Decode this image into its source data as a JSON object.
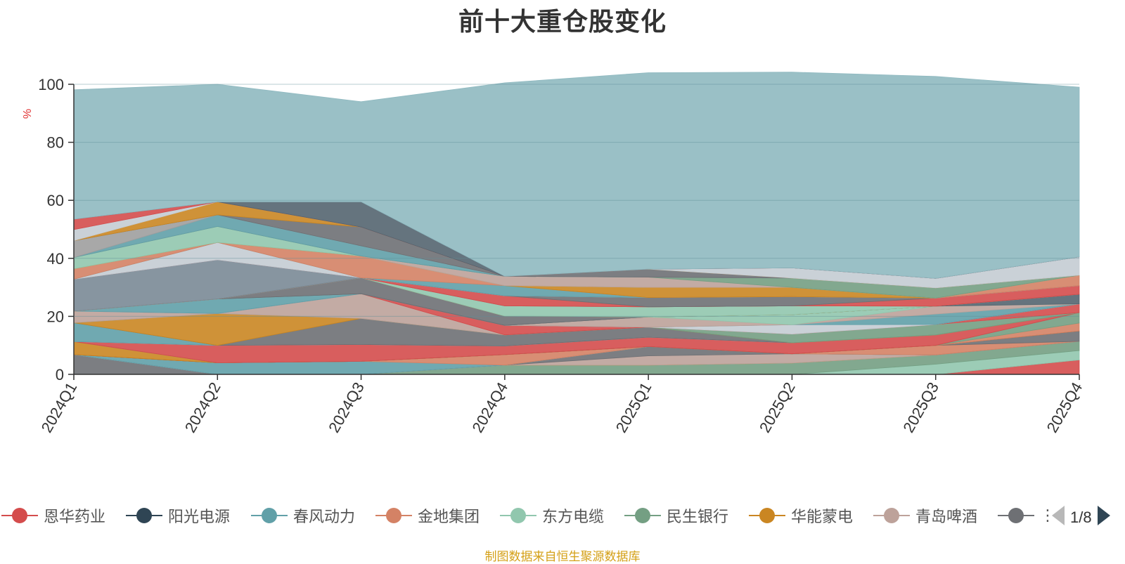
{
  "title": "前十大重仓股变化",
  "source_note": "制图数据来自恒生聚源数据库",
  "legend_pager": {
    "text": "1/8",
    "truncated_item": "⋮"
  },
  "chart_data": {
    "type": "area",
    "stacked": true,
    "categories": [
      "2024Q1",
      "2024Q2",
      "2024Q3",
      "2024Q4",
      "2025Q1",
      "2025Q2",
      "2025Q3",
      "2025Q4"
    ],
    "ylabel": "%",
    "ylim": [
      0,
      100
    ],
    "yticks": [
      0,
      20,
      40,
      60,
      80,
      100
    ],
    "grid": true,
    "legend_position": "bottom",
    "series": [
      {
        "name": "恩华药业",
        "color": "#d44c4c",
        "values": [
          0,
          0,
          0,
          0,
          0,
          0,
          0,
          5
        ]
      },
      {
        "name": "阳光电源",
        "color": "#2f4554",
        "values": [
          0,
          0,
          0,
          0,
          0,
          0,
          0,
          0
        ]
      },
      {
        "name": "春风动力",
        "color": "#61a0a8",
        "values": [
          0,
          0,
          0,
          0,
          0,
          0,
          0,
          0
        ]
      },
      {
        "name": "金地集团",
        "color": "#d48265",
        "values": [
          0,
          0,
          0,
          0,
          0,
          0,
          0,
          0
        ]
      },
      {
        "name": "东方电缆",
        "color": "#91c7ae",
        "values": [
          0,
          0,
          0,
          0,
          0,
          0,
          3.5,
          3.2
        ]
      },
      {
        "name": "民生银行",
        "color": "#749f83",
        "values": [
          0,
          0,
          0,
          3.2,
          3.2,
          3.9,
          3.2,
          3.2
        ]
      },
      {
        "name": "华能蒙电",
        "color": "#ca8622",
        "values": [
          0,
          0,
          0,
          0,
          0,
          0,
          0,
          0
        ]
      },
      {
        "name": "青岛啤酒",
        "color": "#bda29a",
        "values": [
          0,
          0,
          0,
          0,
          3.2,
          3.2,
          0,
          0
        ]
      },
      {
        "color": "#6e7074",
        "values": [
          6.8,
          0,
          0,
          0,
          3.2,
          0,
          0,
          0
        ]
      },
      {
        "color": "#546570",
        "values": [
          0,
          0,
          0,
          0,
          0,
          0,
          0,
          0
        ]
      },
      {
        "color": "#c4ccd3",
        "values": [
          0,
          0,
          0,
          0,
          0,
          0,
          0,
          0
        ]
      },
      {
        "color": "#61a0a8",
        "values": [
          0,
          4,
          4.5,
          0,
          0,
          0,
          0,
          0
        ]
      },
      {
        "color": "#d48265",
        "values": [
          0,
          0,
          0,
          3.6,
          0,
          0,
          3.3,
          0
        ]
      },
      {
        "color": "#6e7074",
        "values": [
          0,
          0,
          0,
          0,
          0,
          0,
          0,
          3.6
        ]
      },
      {
        "color": "#c23531",
        "values": [
          0,
          0,
          0,
          0,
          0,
          0,
          0,
          0
        ]
      },
      {
        "color": "#ca8622",
        "values": [
          4.5,
          0,
          0,
          0,
          0,
          0,
          0,
          0
        ]
      },
      {
        "color": "#d48265",
        "values": [
          0,
          0,
          0,
          0,
          0,
          0,
          0,
          2.7
        ]
      },
      {
        "color": "#749f83",
        "values": [
          0,
          0,
          0,
          0,
          0,
          0,
          0,
          3.6
        ]
      },
      {
        "color": "#d44c4c",
        "values": [
          0,
          6,
          5.8,
          3,
          3.2,
          3.8,
          3.6,
          0
        ]
      },
      {
        "color": "#c4ccd3",
        "values": [
          0,
          0,
          0,
          0,
          0,
          0,
          0,
          0
        ]
      },
      {
        "color": "#61a0a8",
        "values": [
          6.5,
          0,
          0,
          0,
          0,
          0,
          0,
          0
        ]
      },
      {
        "color": "#6e7074",
        "values": [
          0,
          0,
          9,
          3.8,
          3.5,
          0,
          0,
          0
        ]
      },
      {
        "color": "#ca8622",
        "values": [
          0,
          11,
          0,
          0,
          0,
          0,
          0,
          0
        ]
      },
      {
        "color": "#749f83",
        "values": [
          0,
          0,
          0,
          0,
          0,
          3,
          3.6,
          0
        ]
      },
      {
        "color": "#bda29a",
        "values": [
          4,
          0,
          8.5,
          0,
          0,
          0,
          0,
          0
        ]
      },
      {
        "color": "#d44c4c",
        "values": [
          0,
          0,
          0,
          3.3,
          0,
          0,
          0,
          3
        ]
      },
      {
        "color": "#c4ccd3",
        "values": [
          0,
          0,
          0,
          0,
          0,
          3.2,
          0,
          0
        ]
      },
      {
        "color": "#61a0a8",
        "values": [
          0,
          5,
          0,
          0,
          0,
          0,
          3.6,
          0
        ]
      },
      {
        "color": "#bda29a",
        "values": [
          0,
          0,
          0,
          0,
          3.5,
          0,
          2.7,
          0
        ]
      },
      {
        "color": "#91c7ae",
        "values": [
          0,
          0,
          0,
          0,
          0,
          3.5,
          0,
          0
        ]
      },
      {
        "color": "#546570",
        "values": [
          0,
          0,
          0,
          0,
          0,
          0,
          0,
          3.3
        ]
      },
      {
        "color": "#6e7074",
        "values": [
          0,
          0,
          5.5,
          3.2,
          0,
          0,
          0,
          0
        ]
      },
      {
        "color": "#ca8622",
        "values": [
          0,
          0,
          0,
          0,
          0,
          0,
          0,
          0
        ]
      },
      {
        "color": "#91c7ae",
        "values": [
          0,
          0,
          0,
          3.5,
          3.5,
          3,
          0,
          0
        ]
      },
      {
        "color": "#d48265",
        "values": [
          0,
          0,
          0,
          0,
          0,
          0,
          0,
          0
        ]
      },
      {
        "color": "#7a8a96",
        "values": [
          11,
          13.5,
          0,
          0,
          0,
          0,
          0,
          0
        ]
      },
      {
        "color": "#d44c4c",
        "values": [
          0,
          0,
          0,
          3.5,
          0,
          0,
          2.8,
          3
        ]
      },
      {
        "color": "#6e7074",
        "values": [
          0,
          0,
          0,
          0,
          3.2,
          3.2,
          0,
          0
        ]
      },
      {
        "color": "#c4ccd3",
        "values": [
          0,
          6,
          0,
          0,
          0,
          0,
          0,
          0
        ]
      },
      {
        "color": "#61a0a8",
        "values": [
          0,
          0,
          0,
          3.5,
          0,
          0,
          0,
          0
        ]
      },
      {
        "color": "#d48265",
        "values": [
          3.6,
          0,
          7.5,
          0,
          0,
          0,
          0,
          3.6
        ]
      },
      {
        "color": "#ca8622",
        "values": [
          0,
          0,
          0,
          0,
          3.5,
          3.2,
          0,
          0
        ]
      },
      {
        "color": "#91c7ae",
        "values": [
          3.9,
          5.5,
          0,
          0,
          0,
          0,
          0,
          0
        ]
      },
      {
        "color": "#bda29a",
        "values": [
          0,
          0,
          0,
          3.2,
          3.5,
          0,
          0,
          0
        ]
      },
      {
        "color": "#749f83",
        "values": [
          0,
          0,
          0,
          0,
          0,
          3.2,
          3.5,
          0
        ]
      },
      {
        "color": "#61a0a8",
        "values": [
          0,
          4,
          3.5,
          0,
          0,
          0,
          0,
          0
        ]
      },
      {
        "color": "#9e9e9e",
        "values": [
          5.8,
          0,
          0,
          0,
          0,
          0,
          0,
          0
        ]
      },
      {
        "color": "#6e7074",
        "values": [
          0,
          0,
          6.5,
          0,
          2.8,
          0,
          0,
          0
        ]
      },
      {
        "color": "#ca8622",
        "values": [
          0,
          4.5,
          0,
          0,
          0,
          0,
          0,
          0
        ]
      },
      {
        "color": "#c4ccd3",
        "values": [
          3.8,
          0,
          0,
          0,
          0,
          3.5,
          3.3,
          6.3
        ]
      },
      {
        "color": "#d44c4c",
        "values": [
          3.6,
          0,
          0,
          0,
          0,
          0,
          0,
          0
        ]
      },
      {
        "color": "#546570",
        "values": [
          0,
          0,
          8.7,
          0,
          0,
          0,
          0,
          0
        ]
      },
      {
        "color": "#8fb9c0",
        "values": [
          44.6,
          40.5,
          34.5,
          66.7,
          67.7,
          67.5,
          69.6,
          58.5
        ]
      }
    ]
  }
}
